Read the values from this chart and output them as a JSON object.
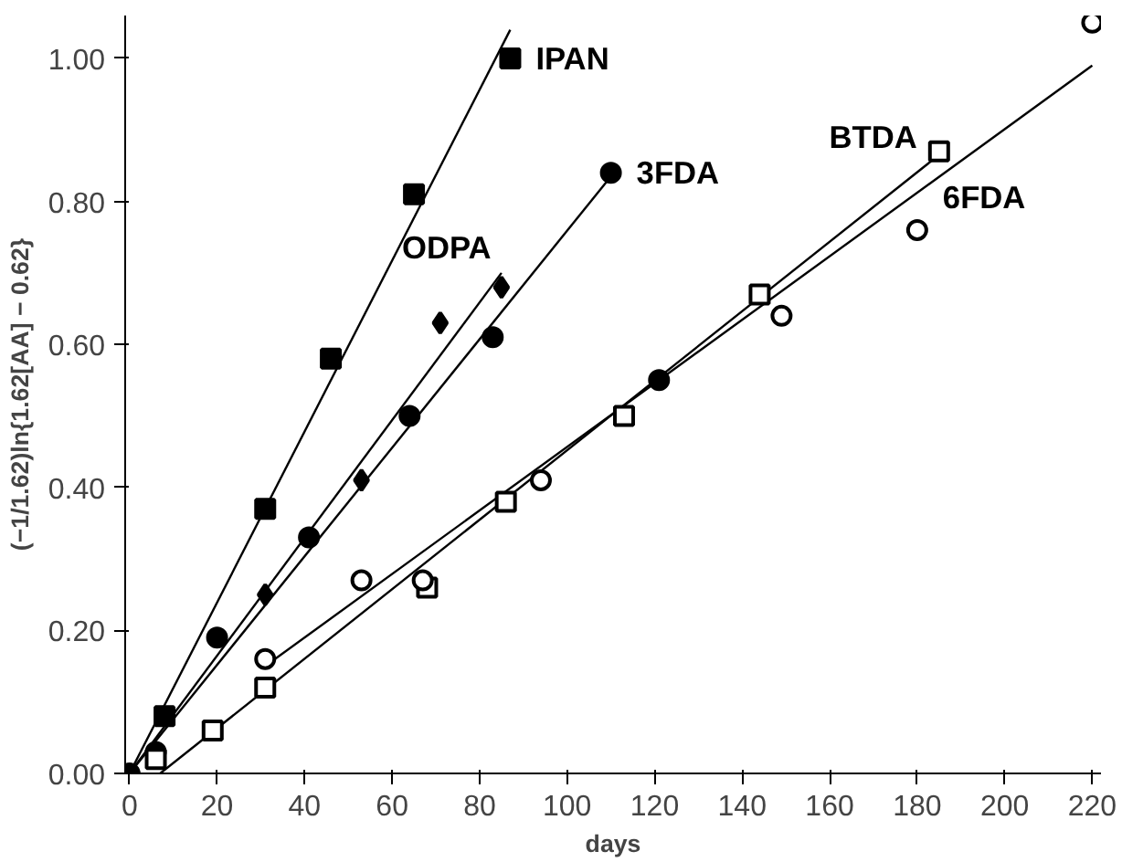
{
  "chart_data": {
    "type": "scatter",
    "xlabel": "days",
    "ylabel": "(−1/1.62)ln{1.62[AA] − 0.62}",
    "xlim": [
      -1,
      222
    ],
    "ylim": [
      0,
      1.06
    ],
    "xticks": [
      0,
      20,
      40,
      60,
      80,
      100,
      120,
      140,
      160,
      180,
      200,
      220
    ],
    "yticks": [
      {
        "value": 0,
        "label": "0.00"
      },
      {
        "value": 0.2,
        "label": "0.20"
      },
      {
        "value": 0.4,
        "label": "0.40"
      },
      {
        "value": 0.6,
        "label": "0.60"
      },
      {
        "value": 0.8,
        "label": "0.80"
      },
      {
        "value": 1.0,
        "label": "1.00"
      }
    ],
    "grid": false,
    "series": [
      {
        "type": "line",
        "marker": "none",
        "color": "#000000",
        "x": [
          0,
          87
        ],
        "values": [
          0,
          1.04
        ]
      },
      {
        "type": "line",
        "marker": "none",
        "color": "#000000",
        "x": [
          0,
          85
        ],
        "values": [
          0,
          0.7
        ]
      },
      {
        "type": "line",
        "marker": "none",
        "color": "#000000",
        "x": [
          0,
          110
        ],
        "values": [
          0,
          0.835
        ]
      },
      {
        "type": "line",
        "marker": "none",
        "color": "#000000",
        "x": [
          7,
          186
        ],
        "values": [
          0,
          0.87
        ]
      },
      {
        "type": "line",
        "marker": "none",
        "color": "#000000",
        "x": [
          31,
          220
        ],
        "values": [
          0.15,
          0.99
        ]
      },
      {
        "name": "IPAN",
        "marker": "square",
        "color": "#000000",
        "x": [
          8,
          31,
          46,
          65,
          87
        ],
        "values": [
          0.08,
          0.37,
          0.58,
          0.81,
          1.0
        ]
      },
      {
        "name": "ODPA",
        "marker": "diamond",
        "color": "#000000",
        "x": [
          31,
          53,
          71,
          85
        ],
        "values": [
          0.25,
          0.41,
          0.63,
          0.68
        ]
      },
      {
        "name": "3FDA",
        "marker": "circle",
        "color": "#000000",
        "x": [
          0,
          6,
          20,
          41,
          64,
          83,
          110,
          121
        ],
        "values": [
          0,
          0.03,
          0.19,
          0.33,
          0.5,
          0.61,
          0.84,
          0.55
        ]
      },
      {
        "name": "BTDA",
        "marker": "square",
        "color": "#ffffff",
        "x": [
          6,
          19,
          31,
          68,
          86,
          113,
          144,
          185
        ],
        "values": [
          0.02,
          0.06,
          0.12,
          0.26,
          0.38,
          0.5,
          0.67,
          0.87
        ]
      },
      {
        "name": "6FDA",
        "marker": "circle",
        "color": "#ffffff",
        "x": [
          31,
          53,
          67,
          94,
          149,
          180,
          220
        ],
        "values": [
          0.16,
          0.27,
          0.27,
          0.41,
          0.64,
          0.76,
          1.05
        ]
      }
    ]
  }
}
